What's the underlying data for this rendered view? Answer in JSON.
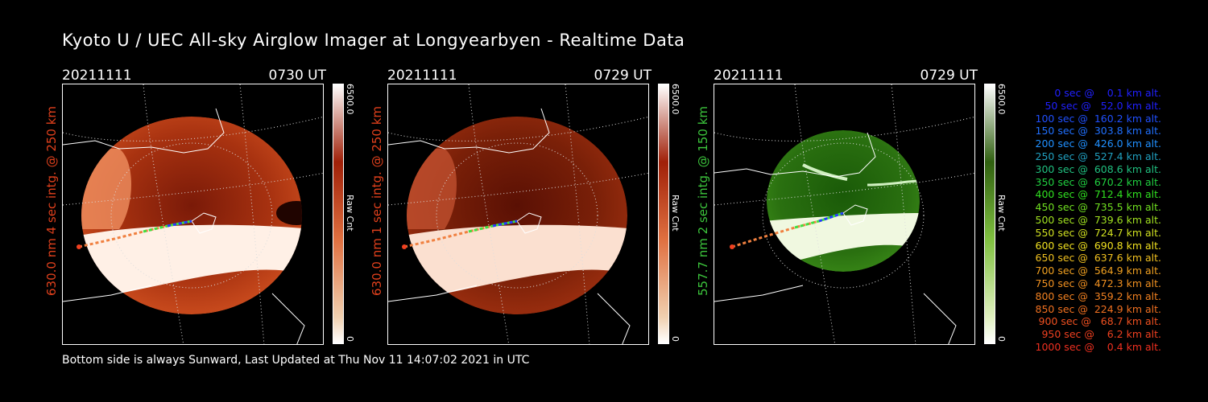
{
  "title": "Kyoto U / UEC All-sky Airglow Imager at Longyearbyen - Realtime Data",
  "footer": "Bottom side is always Sunward, Last Updated at Thu Nov 11 14:07:02 2021 in UTC",
  "panels": [
    {
      "date": "20211111",
      "time": "0730 UT",
      "label": "630.0 nm 4 sec intg. @ 250 km",
      "label_color": "#e0401c",
      "cbar_max": "6500.0",
      "cbar_unit": "Raw Cnt",
      "cbar_min": "0",
      "palette": "red"
    },
    {
      "date": "20211111",
      "time": "0729 UT",
      "label": "630.0 nm 1 sec intg. @ 250 km",
      "label_color": "#e0401c",
      "cbar_max": "6500.0",
      "cbar_unit": "Raw Cnt",
      "cbar_min": "0",
      "palette": "red"
    },
    {
      "date": "20211111",
      "time": "0729 UT",
      "label": "557.7 nm 2 sec intg. @ 150 km",
      "label_color": "#3cc43c",
      "cbar_max": "6500.0",
      "cbar_unit": "Raw Cnt",
      "cbar_min": "0",
      "palette": "green"
    }
  ],
  "legend": [
    {
      "text": "   0 sec @    0.1 km alt.",
      "color": "#2020ff"
    },
    {
      "text": "  50 sec @   52.0 km alt.",
      "color": "#2020ff"
    },
    {
      "text": " 100 sec @  160.2 km alt.",
      "color": "#2050ff"
    },
    {
      "text": " 150 sec @  303.8 km alt.",
      "color": "#2070ff"
    },
    {
      "text": " 200 sec @  426.0 km alt.",
      "color": "#2090ff"
    },
    {
      "text": " 250 sec @  527.4 km alt.",
      "color": "#20a0c0"
    },
    {
      "text": " 300 sec @  608.6 km alt.",
      "color": "#20c080"
    },
    {
      "text": " 350 sec @  670.2 km alt.",
      "color": "#20d040"
    },
    {
      "text": " 400 sec @  712.4 km alt.",
      "color": "#30e020"
    },
    {
      "text": " 450 sec @  735.5 km alt.",
      "color": "#70e020"
    },
    {
      "text": " 500 sec @  739.6 km alt.",
      "color": "#a0e020"
    },
    {
      "text": " 550 sec @  724.7 km alt.",
      "color": "#d0e020"
    },
    {
      "text": " 600 sec @  690.8 km alt.",
      "color": "#f0e020"
    },
    {
      "text": " 650 sec @  637.6 km alt.",
      "color": "#f0c020"
    },
    {
      "text": " 700 sec @  564.9 km alt.",
      "color": "#f0a020"
    },
    {
      "text": " 750 sec @  472.3 km alt.",
      "color": "#f09020"
    },
    {
      "text": " 800 sec @  359.2 km alt.",
      "color": "#f08020"
    },
    {
      "text": " 850 sec @  224.9 km alt.",
      "color": "#f07020"
    },
    {
      "text": " 900 sec @   68.7 km alt.",
      "color": "#f05020"
    },
    {
      "text": " 950 sec @    6.2 km alt.",
      "color": "#f04020"
    },
    {
      "text": "1000 sec @    0.4 km alt.",
      "color": "#f03020"
    }
  ]
}
